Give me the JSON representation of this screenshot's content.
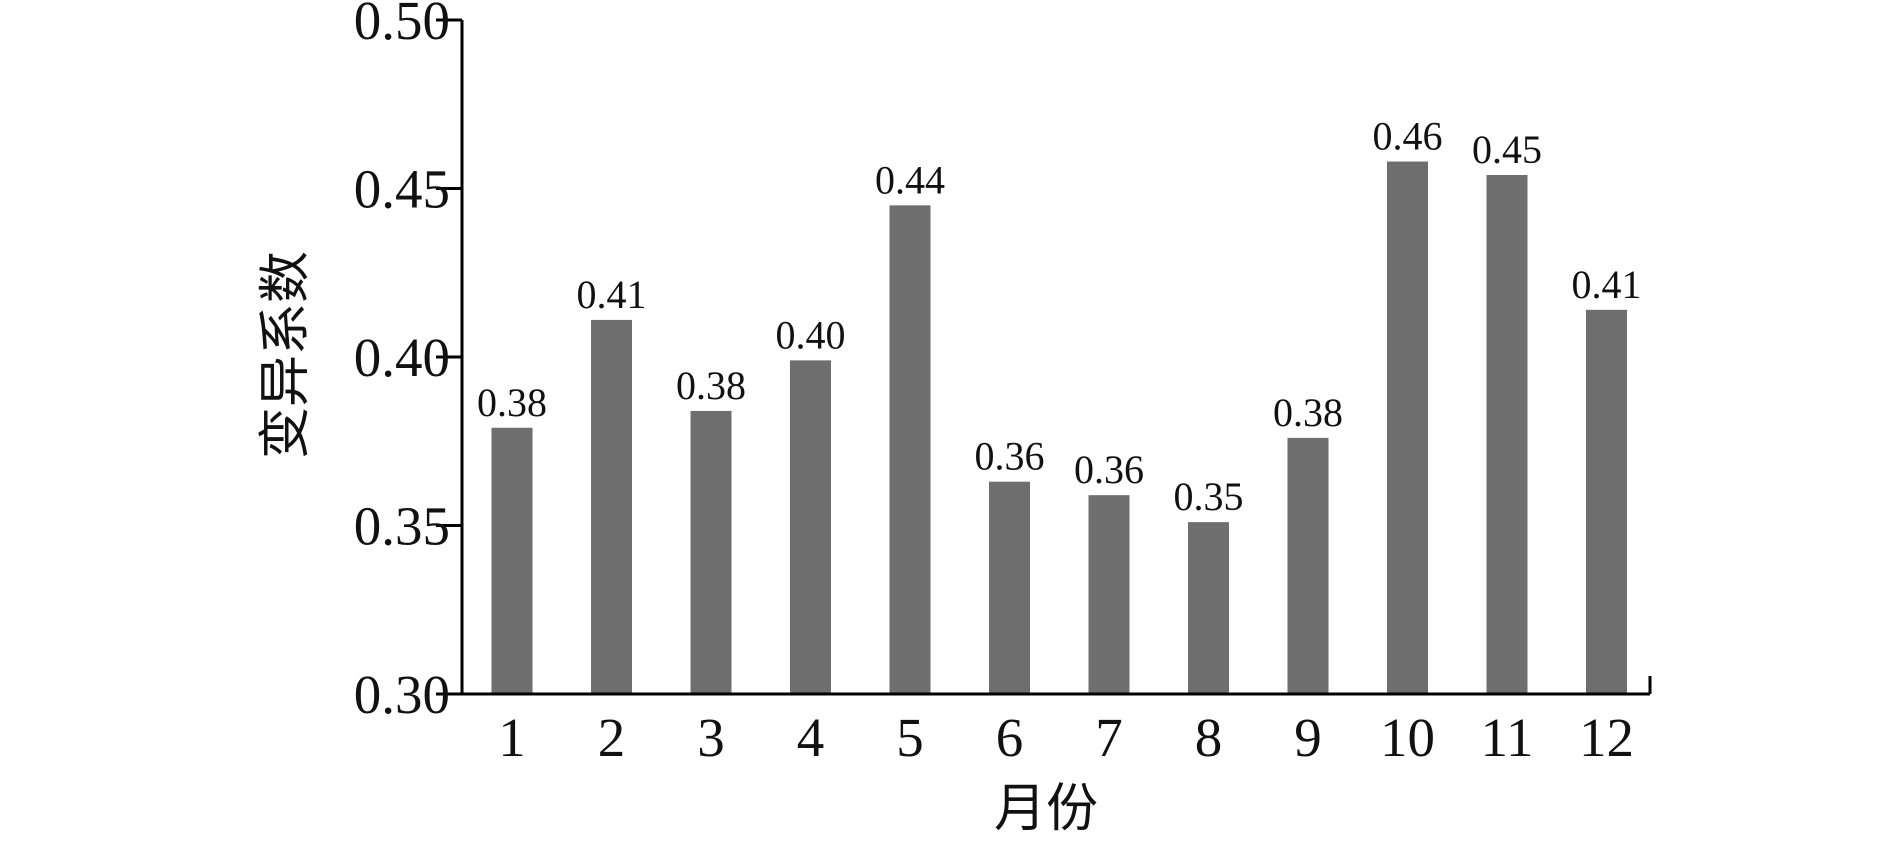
{
  "chart_data": {
    "type": "bar",
    "title": "",
    "xlabel": "月份",
    "ylabel": "变异系数",
    "categories": [
      "1",
      "2",
      "3",
      "4",
      "5",
      "6",
      "7",
      "8",
      "9",
      "10",
      "11",
      "12"
    ],
    "values": [
      0.379,
      0.411,
      0.384,
      0.399,
      0.445,
      0.363,
      0.359,
      0.351,
      0.376,
      0.458,
      0.454,
      0.414
    ],
    "data_labels": [
      "0.38",
      "0.41",
      "0.38",
      "0.40",
      "0.44",
      "0.36",
      "0.36",
      "0.35",
      "0.38",
      "0.46",
      "0.45",
      "0.41"
    ],
    "ylim": [
      0.3,
      0.5
    ],
    "yticks": [
      "0.30",
      "0.35",
      "0.40",
      "0.45",
      "0.50"
    ],
    "bar_color": "#6e6e6e",
    "axis_color": "#000000",
    "grid": false,
    "legend": "none"
  }
}
